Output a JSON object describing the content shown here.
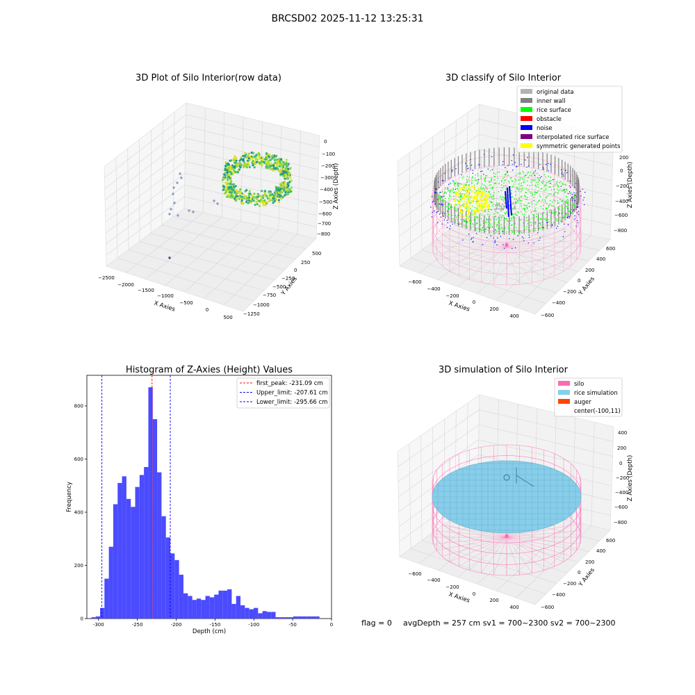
{
  "figure_title": "BRCSD02 2025-11-12 13:25:31",
  "panels": {
    "raw": {
      "title": "3D Plot of Silo Interior(row data)",
      "xlabel": "X Axies",
      "ylabel": "Y Axies",
      "zlabel": "Z Axies (Depth)",
      "xticks": [
        "−2500",
        "−2000",
        "−1500",
        "−1000",
        "−500",
        "0",
        "500"
      ],
      "yticks": [
        "500",
        "250",
        "0",
        "−250",
        "−500",
        "−750",
        "−1000",
        "−1250"
      ],
      "zticks": [
        "0",
        "−100",
        "−200",
        "−300",
        "−400",
        "−500",
        "−600",
        "−700",
        "−800"
      ]
    },
    "classify": {
      "title": "3D classify of Silo Interior",
      "xlabel": "X Axies",
      "ylabel": "Y Axies",
      "zlabel": "Z Axies (Depth)",
      "xticks": [
        "−600",
        "−400",
        "−200",
        "0",
        "200",
        "400"
      ],
      "yticks": [
        "600",
        "400",
        "200",
        "0",
        "−200",
        "−400",
        "−600"
      ],
      "zticks": [
        "200",
        "0",
        "−200",
        "−400",
        "−600",
        "−800"
      ],
      "legend": [
        {
          "label": "original data",
          "color": "#b3b3b3"
        },
        {
          "label": "inner wall",
          "color": "#808080"
        },
        {
          "label": "rice surface",
          "color": "#00ff00"
        },
        {
          "label": "obstacle",
          "color": "#ff0000"
        },
        {
          "label": "noise",
          "color": "#0000ff"
        },
        {
          "label": "interpolated rice surface",
          "color": "#800080"
        },
        {
          "label": "symmetric generated points",
          "color": "#ffff00"
        }
      ]
    },
    "simulation": {
      "title": "3D simulation of Silo Interior",
      "xlabel": "X Axies",
      "ylabel": "Y Axies",
      "zlabel": "Z Axies (Depth)",
      "xticks": [
        "−600",
        "−400",
        "−200",
        "0",
        "200",
        "400"
      ],
      "yticks": [
        "600",
        "400",
        "200",
        "0",
        "−200",
        "−400",
        "−600"
      ],
      "zticks": [
        "400",
        "200",
        "0",
        "−200",
        "−400",
        "−600",
        "−800"
      ],
      "legend": [
        {
          "label": "silo",
          "color": "#ff69b4"
        },
        {
          "label": "rice simulation",
          "color": "#87ceeb"
        },
        {
          "label": "auger",
          "color": "#ff4500"
        },
        {
          "label": "center(-100,11)",
          "color": ""
        }
      ]
    }
  },
  "footer": {
    "flag": "flag = 0",
    "stats": "avgDepth = 257 cm  sv1 = 700~2300  sv2 = 700~2300"
  },
  "chart_data": [
    {
      "type": "bar",
      "title": "Histogram of Z-Axies (Height) Values",
      "xlabel": "Depth (cm)",
      "ylabel": "Frequency",
      "xlim": [
        -315,
        0
      ],
      "ylim": [
        0,
        915
      ],
      "bar_color": "#4b4bff",
      "xticks": [
        -300,
        -250,
        -200,
        -150,
        -100,
        -50,
        0
      ],
      "yticks": [
        0,
        200,
        400,
        600,
        800
      ],
      "bin_width": 5.65,
      "bin_left_edges": [
        -309.3,
        -303.65,
        -298.0,
        -292.35,
        -286.7,
        -281.05,
        -275.4,
        -269.75,
        -264.1,
        -258.45,
        -252.8,
        -247.15,
        -241.5,
        -235.85,
        -230.2,
        -224.55,
        -218.9,
        -213.25,
        -207.6,
        -201.95,
        -196.3,
        -190.65,
        -185.0,
        -179.35,
        -173.7,
        -168.05,
        -162.4,
        -156.75,
        -151.1,
        -145.45,
        -139.8,
        -134.15,
        -128.5,
        -122.85,
        -117.2,
        -111.55,
        -105.9,
        -100.25,
        -94.6,
        -88.95,
        -83.3,
        -77.65,
        -72.0,
        -66.35,
        -60.7,
        -55.05,
        -49.4,
        -43.75,
        -38.1,
        -32.45,
        -26.8,
        -21.15
      ],
      "values": [
        5,
        8,
        40,
        150,
        270,
        430,
        510,
        535,
        450,
        420,
        495,
        540,
        570,
        870,
        750,
        550,
        385,
        305,
        245,
        220,
        165,
        95,
        85,
        70,
        75,
        70,
        85,
        80,
        90,
        105,
        105,
        110,
        55,
        85,
        50,
        40,
        35,
        40,
        20,
        28,
        25,
        25,
        5,
        5,
        5,
        5,
        8,
        8,
        8,
        8,
        8,
        8
      ],
      "vlines": [
        {
          "label": "first_peak: -231.09 cm",
          "x": -231.09,
          "color": "#ff0000"
        },
        {
          "label": "Upper_limit: -207.61 cm",
          "x": -207.61,
          "color": "#0000ff"
        },
        {
          "label": "Lower_limit: -295.66 cm",
          "x": -295.66,
          "color": "#0000ff"
        }
      ]
    }
  ]
}
